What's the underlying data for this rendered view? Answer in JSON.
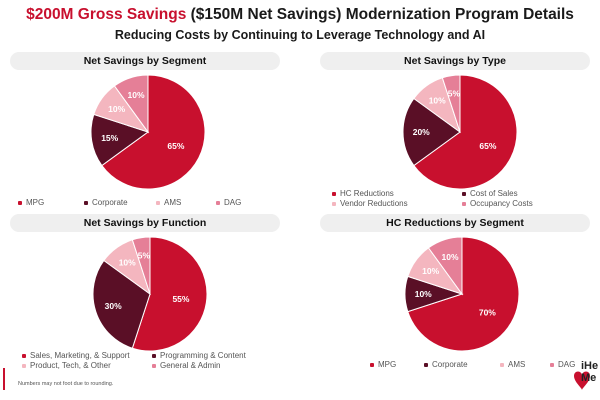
{
  "header": {
    "title_red": "$200M Gross Savings",
    "title_rest": " ($150M Net Savings) Modernization Program Details",
    "subtitle": "Reducing Costs by Continuing to Leverage Technology and AI"
  },
  "footnote": "Numbers may not foot due to rounding.",
  "logo": {
    "text_line1": "iHe",
    "text_line2": "Me"
  },
  "colors": {
    "dark_red": "#c8102e",
    "maroon": "#5a0f26",
    "light_pink": "#f4b6bf",
    "pink": "#e57f97",
    "accent": "#c8102e"
  },
  "chart_data": [
    {
      "type": "pie",
      "title": "Net Savings by Segment",
      "labels": [
        "MPG",
        "Corporate",
        "AMS",
        "DAG"
      ],
      "values": [
        65,
        15,
        10,
        10
      ],
      "value_labels": [
        "65%",
        "15%",
        "10%",
        "10%"
      ],
      "colors": [
        "#c8102e",
        "#5a0f26",
        "#f4b6bf",
        "#e57f97"
      ],
      "legend_placement": "bottom"
    },
    {
      "type": "pie",
      "title": "Net Savings by Type",
      "labels": [
        "HC Reductions",
        "Cost of Sales",
        "Vendor Reductions",
        "Occupancy Costs"
      ],
      "values": [
        65,
        20,
        10,
        5
      ],
      "value_labels": [
        "65%",
        "20%",
        "10%",
        "5%"
      ],
      "colors": [
        "#c8102e",
        "#5a0f26",
        "#f4b6bf",
        "#e57f97"
      ],
      "legend_placement": "bottom"
    },
    {
      "type": "pie",
      "title": "Net Savings by Function",
      "labels": [
        "Sales, Marketing, & Support",
        "Programming & Content",
        "Product, Tech, & Other",
        "General & Admin"
      ],
      "values": [
        55,
        30,
        10,
        5
      ],
      "value_labels": [
        "55%",
        "30%",
        "10%",
        "5%"
      ],
      "colors": [
        "#c8102e",
        "#5a0f26",
        "#f4b6bf",
        "#e57f97"
      ],
      "legend_placement": "bottom"
    },
    {
      "type": "pie",
      "title": "HC Reductions by Segment",
      "labels": [
        "MPG",
        "Corporate",
        "AMS",
        "DAG"
      ],
      "values": [
        70,
        10,
        10,
        10
      ],
      "value_labels": [
        "70%",
        "10%",
        "10%",
        "10%"
      ],
      "colors": [
        "#c8102e",
        "#5a0f26",
        "#f4b6bf",
        "#e57f97"
      ],
      "legend_placement": "bottom"
    }
  ]
}
